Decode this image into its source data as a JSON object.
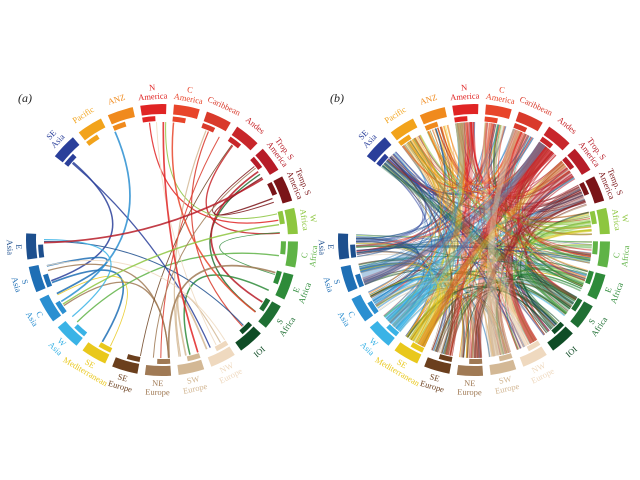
{
  "figure": {
    "panels": [
      {
        "label": "(a)",
        "chord_density": "sparse"
      },
      {
        "label": "(b)",
        "chord_density": "dense"
      }
    ],
    "regions": [
      {
        "id": "se-asia",
        "lines": [
          "SE",
          "Asia"
        ],
        "color": "#2a3f9a"
      },
      {
        "id": "pacific",
        "lines": [
          "Pacific"
        ],
        "color": "#f2a31b"
      },
      {
        "id": "anz",
        "lines": [
          "ANZ"
        ],
        "color": "#f08a1d"
      },
      {
        "id": "n-america",
        "lines": [
          "N",
          "America"
        ],
        "color": "#e02424"
      },
      {
        "id": "c-america",
        "lines": [
          "C",
          "America"
        ],
        "color": "#e8452a"
      },
      {
        "id": "caribbean",
        "lines": [
          "Caribbean"
        ],
        "color": "#d93a2b"
      },
      {
        "id": "andes",
        "lines": [
          "Andes"
        ],
        "color": "#c8262a"
      },
      {
        "id": "trop-s-america",
        "lines": [
          "Trop. S",
          "America"
        ],
        "color": "#b71c28"
      },
      {
        "id": "temp-s-america",
        "lines": [
          "Temp. S",
          "America"
        ],
        "color": "#7a1418"
      },
      {
        "id": "w-africa",
        "lines": [
          "W",
          "Africa"
        ],
        "color": "#8dc63f"
      },
      {
        "id": "c-africa",
        "lines": [
          "C",
          "Africa"
        ],
        "color": "#5fb346"
      },
      {
        "id": "e-africa",
        "lines": [
          "E",
          "Africa"
        ],
        "color": "#2e8b3a"
      },
      {
        "id": "s-africa",
        "lines": [
          "S",
          "Africa"
        ],
        "color": "#1f6f33"
      },
      {
        "id": "ioi",
        "lines": [
          "IOI"
        ],
        "color": "#0f4d26"
      },
      {
        "id": "nw-europe",
        "lines": [
          "NW",
          "Europe"
        ],
        "color": "#efd9bf"
      },
      {
        "id": "sw-europe",
        "lines": [
          "SW",
          "Europe"
        ],
        "color": "#d3b895"
      },
      {
        "id": "ne-europe",
        "lines": [
          "NE",
          "Europe"
        ],
        "color": "#a07a55"
      },
      {
        "id": "se-europe",
        "lines": [
          "SE",
          "Europe"
        ],
        "color": "#6b3f1d"
      },
      {
        "id": "se-mediterranean",
        "lines": [
          "SE",
          "Mediterranean"
        ],
        "color": "#e9c81c"
      },
      {
        "id": "w-asia",
        "lines": [
          "W",
          "Asia"
        ],
        "color": "#3ab3e6"
      },
      {
        "id": "c-asia",
        "lines": [
          "C",
          "Asia"
        ],
        "color": "#2b8fd1"
      },
      {
        "id": "s-asia",
        "lines": [
          "S",
          "Asia"
        ],
        "color": "#1f6fb5"
      },
      {
        "id": "e-asia",
        "lines": [
          "E",
          "Asia"
        ],
        "color": "#1d4f8e"
      }
    ]
  }
}
